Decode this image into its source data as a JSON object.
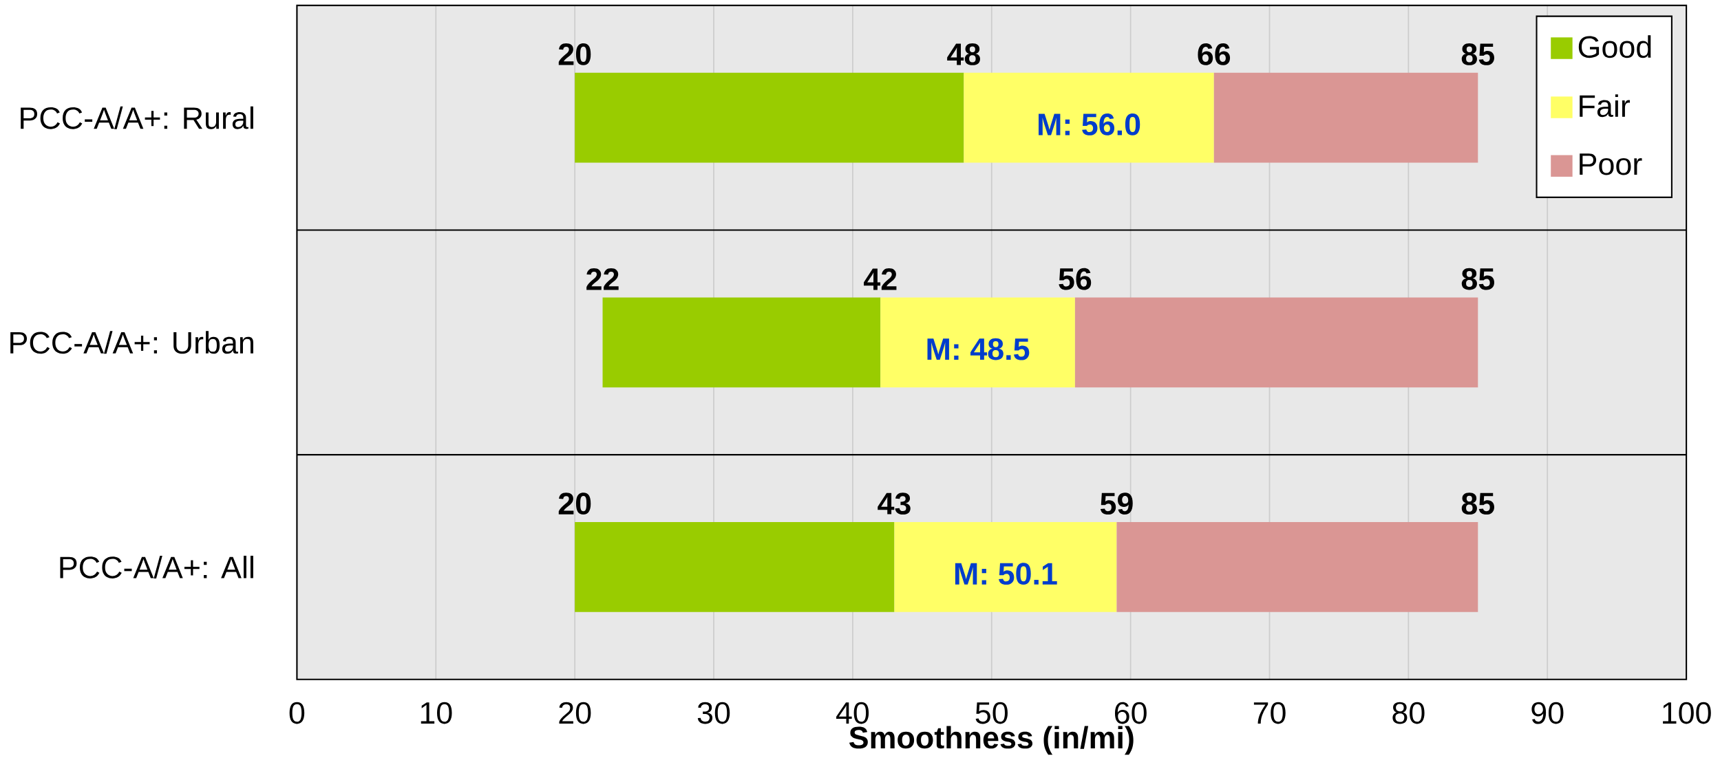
{
  "chart_data": {
    "type": "bar",
    "orientation": "horizontal",
    "xlabel": "Smoothness (in/mi)",
    "categories": [
      "PCC-A/A+: Rural",
      "PCC-A/A+: Urban",
      "PCC-A/A+: All"
    ],
    "series": [
      {
        "name": "Good",
        "color": "#99cc00",
        "base": [
          20,
          22,
          20
        ],
        "values": [
          28,
          20,
          23
        ],
        "value_labels": [
          "48",
          "42",
          "43"
        ]
      },
      {
        "name": "Fair",
        "color": "#ffff66",
        "base": [
          48,
          42,
          43
        ],
        "values": [
          18,
          14,
          16
        ],
        "value_labels": [
          "66",
          "56",
          "59"
        ]
      },
      {
        "name": "Poor",
        "color": "#da9694",
        "base": [
          66,
          56,
          59
        ],
        "values": [
          19,
          29,
          26
        ],
        "value_labels": [
          "85",
          "85",
          "85"
        ]
      }
    ],
    "xlim": [
      0,
      100
    ],
    "xticks": [
      0,
      10,
      20,
      30,
      40,
      50,
      60,
      70,
      80,
      90,
      100
    ],
    "grid": true,
    "legend": "top right",
    "annotations": [
      "20",
      "22",
      "20",
      "M: 56.0",
      "M: 48.5",
      "M: 50.1"
    ]
  }
}
